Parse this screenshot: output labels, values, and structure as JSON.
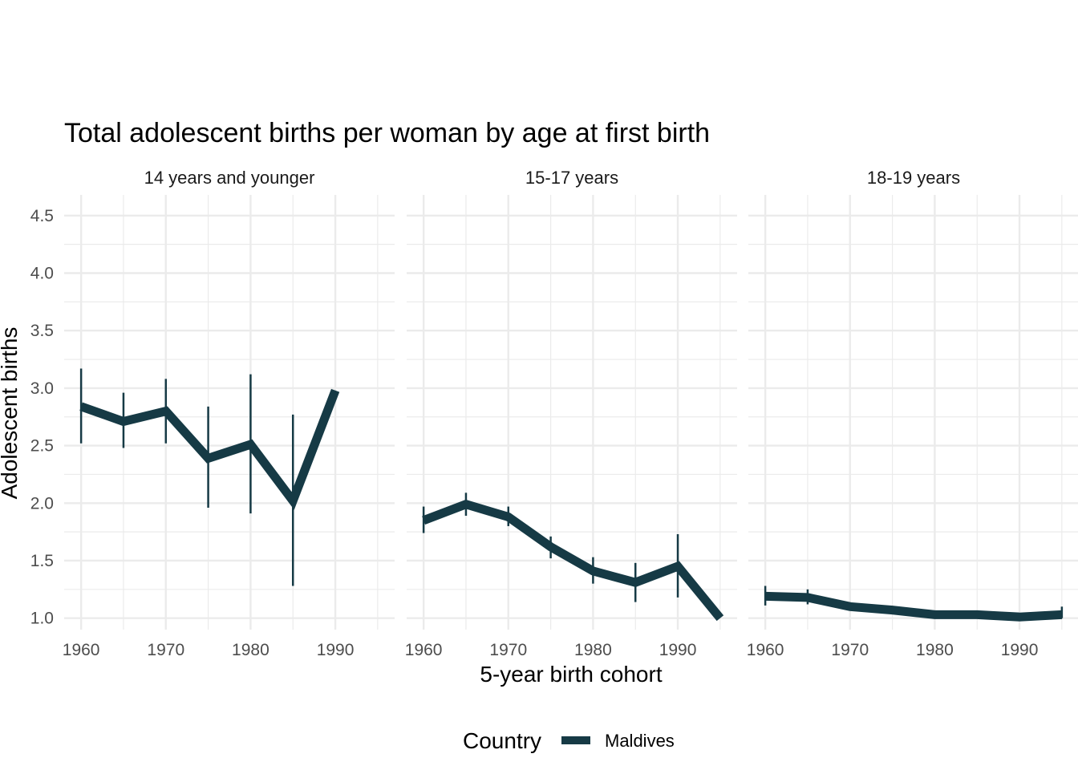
{
  "chart_data": {
    "type": "line",
    "title": "Total adolescent births per woman by age at first birth",
    "xlabel": "5-year birth cohort",
    "ylabel": "Adolescent births",
    "xlim": [
      1958,
      1997
    ],
    "ylim": [
      0.9,
      4.68
    ],
    "x_ticks": [
      1960,
      1970,
      1980,
      1990
    ],
    "y_ticks": [
      1.0,
      1.5,
      2.0,
      2.5,
      3.0,
      3.5,
      4.0,
      4.5
    ],
    "y_tick_labels": [
      "1.0",
      "1.5",
      "2.0",
      "2.5",
      "3.0",
      "3.5",
      "4.0",
      "4.5"
    ],
    "color": "#163a45",
    "legend": {
      "title": "Country",
      "entries": [
        "Maldives"
      ],
      "position": "bottom"
    },
    "panels": [
      {
        "label": "14 years and younger",
        "x": [
          1960,
          1965,
          1970,
          1975,
          1980,
          1985,
          1990
        ],
        "values": [
          2.84,
          2.71,
          2.8,
          2.39,
          2.51,
          2.02,
          2.98
        ],
        "lower": [
          2.52,
          2.48,
          2.52,
          1.96,
          1.91,
          1.28,
          2.98
        ],
        "upper": [
          3.17,
          2.96,
          3.08,
          2.84,
          3.12,
          2.77,
          2.98
        ]
      },
      {
        "label": "15-17 years",
        "x": [
          1960,
          1965,
          1970,
          1975,
          1980,
          1985,
          1990,
          1995
        ],
        "values": [
          1.85,
          1.99,
          1.88,
          1.62,
          1.41,
          1.31,
          1.45,
          1.0
        ],
        "lower": [
          1.74,
          1.89,
          1.8,
          1.52,
          1.3,
          1.14,
          1.18,
          1.0
        ],
        "upper": [
          1.97,
          2.09,
          1.97,
          1.71,
          1.53,
          1.48,
          1.73,
          1.0
        ]
      },
      {
        "label": "18-19 years",
        "x": [
          1960,
          1965,
          1970,
          1975,
          1980,
          1985,
          1990,
          1995
        ],
        "values": [
          1.19,
          1.18,
          1.1,
          1.07,
          1.03,
          1.03,
          1.01,
          1.03
        ],
        "lower": [
          1.11,
          1.12,
          1.1,
          1.07,
          1.03,
          1.03,
          1.01,
          1.0
        ],
        "upper": [
          1.28,
          1.25,
          1.1,
          1.07,
          1.03,
          1.03,
          1.01,
          1.1
        ]
      }
    ]
  }
}
